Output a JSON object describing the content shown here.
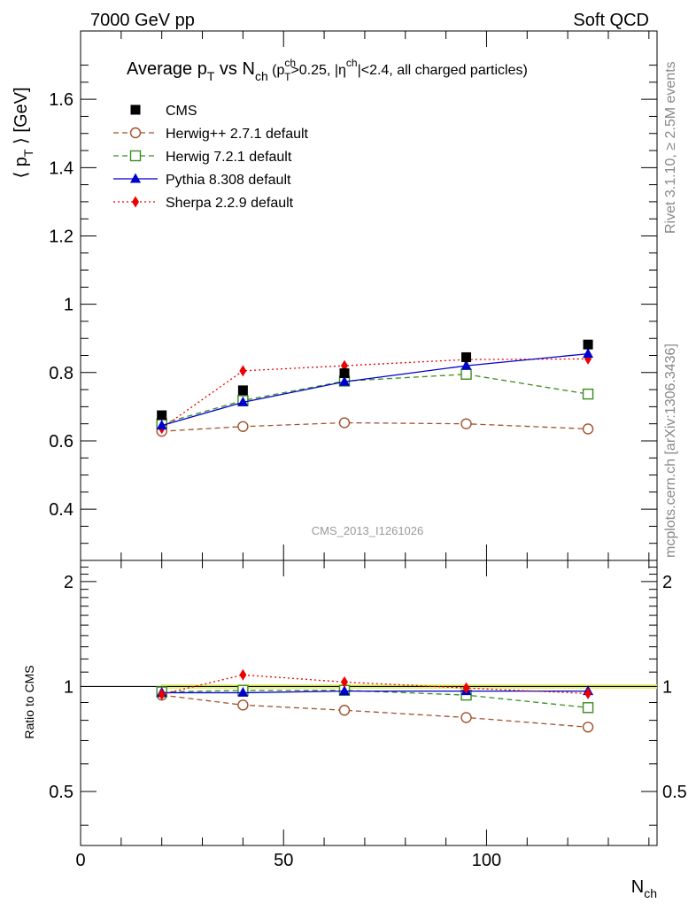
{
  "header": {
    "left": "7000 GeV pp",
    "right": "Soft QCD"
  },
  "side_labels": {
    "rivet": "Rivet 3.1.10, ≥ 2.5M events",
    "mcplots": "mcplots.cern.ch [arXiv:1306.3436]"
  },
  "chart_data": [
    {
      "type": "line",
      "title": "Average p_T vs N_ch (p_T^ch>0.25, |η^ch|<2.4, all charged particles)",
      "title_parts": {
        "main": "Average p",
        "main_sub": "T",
        "vs": " vs N",
        "vs_sub": "ch",
        "paren_open": " (p",
        "cut_sup": "ch",
        "cut_sub": "T",
        "cut_rest": ">0.25, |η",
        "eta_sup": "ch",
        "eta_rest": "|<2.4, all charged particles)"
      },
      "ylabel": "⟨ p_T ⟩ [GeV]",
      "ylabel_parts": {
        "open": "⟨ p",
        "sub": "T",
        "close": " ⟩ [GeV]"
      },
      "analysis_label": "CMS_2013_I1261026",
      "xlim": [
        0,
        142
      ],
      "ylim": [
        0.25,
        1.8
      ],
      "y_ticks": [
        0.4,
        0.6,
        0.8,
        1.0,
        1.2,
        1.4,
        1.6
      ],
      "y_tick_labels": [
        "0.4",
        "0.6",
        "0.8",
        "1",
        "1.2",
        "1.4",
        "1.6"
      ],
      "legend_position": "top-left",
      "series": [
        {
          "name": "CMS",
          "style": "data",
          "color": "#000000",
          "marker": "square-filled",
          "x": [
            20,
            40,
            65,
            95,
            125
          ],
          "y": [
            0.675,
            0.748,
            0.798,
            0.845,
            0.882
          ]
        },
        {
          "name": "Herwig++ 2.7.1 default",
          "style": "dashed",
          "color": "#a0522d",
          "marker": "circle-open",
          "x": [
            20,
            40,
            65,
            95,
            125
          ],
          "y": [
            0.628,
            0.642,
            0.653,
            0.65,
            0.635
          ]
        },
        {
          "name": "Herwig 7.2.1 default",
          "style": "dashed",
          "color": "#3a8c1e",
          "marker": "square-open",
          "x": [
            20,
            40,
            65,
            95,
            125
          ],
          "y": [
            0.65,
            0.718,
            0.775,
            0.795,
            0.737
          ]
        },
        {
          "name": "Pythia 8.308 default",
          "style": "solid",
          "color": "#0000cc",
          "marker": "triangle-filled",
          "x": [
            20,
            40,
            65,
            95,
            125
          ],
          "y": [
            0.645,
            0.713,
            0.773,
            0.82,
            0.855
          ]
        },
        {
          "name": "Sherpa 2.2.9 default",
          "style": "dotted",
          "color": "#ee0000",
          "marker": "diamond-filled",
          "x": [
            20,
            40,
            65,
            95,
            125
          ],
          "y": [
            0.637,
            0.805,
            0.82,
            0.838,
            0.84
          ]
        }
      ]
    },
    {
      "type": "line",
      "ylabel": "Ratio to CMS",
      "xlabel": "N_ch",
      "xlabel_parts": {
        "main": "N",
        "sub": "ch"
      },
      "xlim": [
        0,
        142
      ],
      "ylim": [
        0.35,
        2.3
      ],
      "log_y": true,
      "x_ticks": [
        0,
        50,
        100
      ],
      "x_tick_labels": [
        "0",
        "50",
        "100"
      ],
      "y_ticks": [
        0.5,
        1,
        2
      ],
      "y_tick_labels": [
        "0.5",
        "1",
        "2"
      ],
      "band": {
        "x": [
          10,
          142
        ],
        "y": [
          0.985,
          1.015
        ],
        "color": "#e6f07a"
      },
      "series": [
        {
          "name": "Herwig++ 2.7.1 default",
          "style": "dashed",
          "color": "#a0522d",
          "marker": "circle-open",
          "x": [
            20,
            40,
            65,
            95,
            125
          ],
          "y": [
            0.945,
            0.885,
            0.855,
            0.815,
            0.765
          ]
        },
        {
          "name": "Herwig 7.2.1 default",
          "style": "dashed",
          "color": "#3a8c1e",
          "marker": "square-open",
          "x": [
            20,
            40,
            65,
            95,
            125
          ],
          "y": [
            0.965,
            0.975,
            0.975,
            0.945,
            0.87
          ]
        },
        {
          "name": "Pythia 8.308 default",
          "style": "solid",
          "color": "#0000cc",
          "marker": "triangle-filled",
          "x": [
            20,
            40,
            65,
            95,
            125
          ],
          "y": [
            0.96,
            0.96,
            0.97,
            0.97,
            0.97
          ]
        },
        {
          "name": "Sherpa 2.2.9 default",
          "style": "dotted",
          "color": "#ee0000",
          "marker": "diamond-filled",
          "x": [
            20,
            40,
            65,
            95,
            125
          ],
          "y": [
            0.95,
            1.08,
            1.03,
            0.99,
            0.955
          ]
        }
      ]
    }
  ]
}
